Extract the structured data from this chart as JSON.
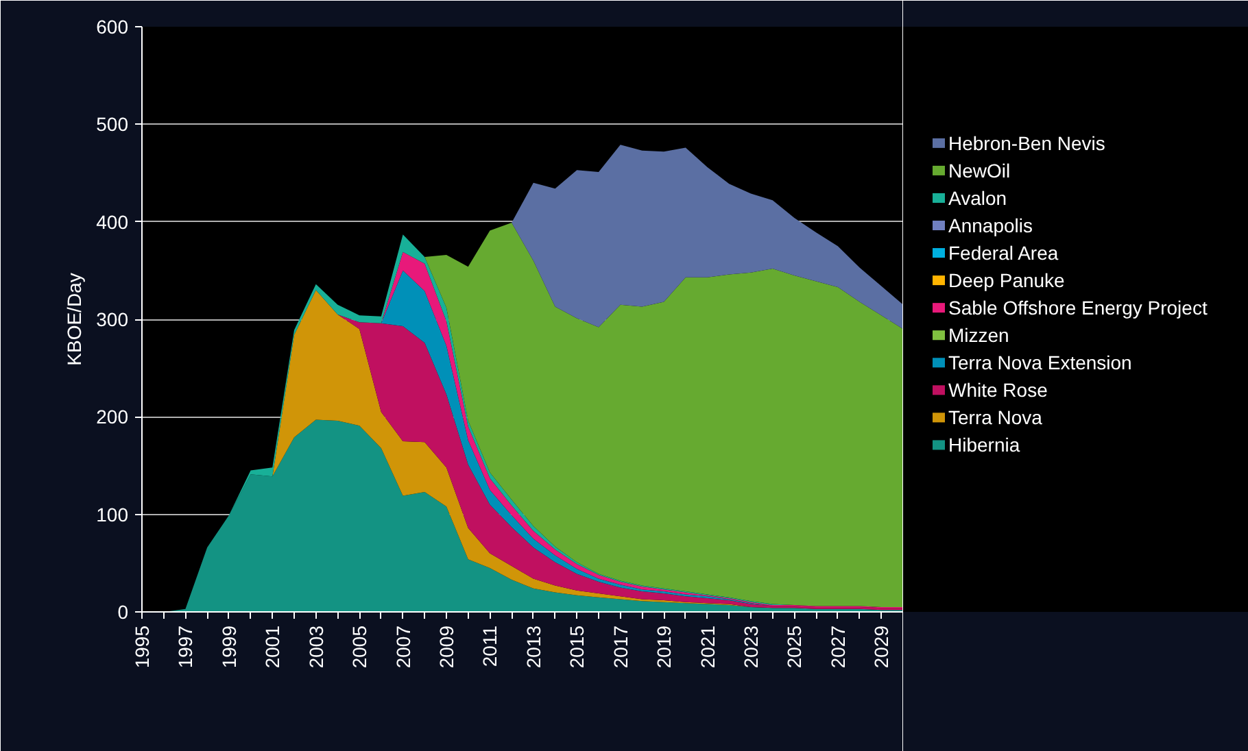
{
  "chart_data": {
    "type": "area",
    "stacked": true,
    "ylabel": "KBOE/Day",
    "x": [
      1995,
      1996,
      1997,
      1998,
      1999,
      2000,
      2001,
      2002,
      2003,
      2004,
      2005,
      2006,
      2007,
      2008,
      2009,
      2010,
      2011,
      2012,
      2013,
      2014,
      2015,
      2016,
      2017,
      2018,
      2019,
      2020,
      2021,
      2022,
      2023,
      2024,
      2025,
      2026,
      2027,
      2028,
      2029,
      2030
    ],
    "xlim": [
      1995,
      2030
    ],
    "xticks": [
      1995,
      {
        "value": 1996,
        "label": null
      },
      1997,
      {
        "value": 1998,
        "label": null
      },
      1999,
      {
        "value": 2000,
        "label": null
      },
      2001,
      {
        "value": 2002,
        "label": null
      },
      2003,
      {
        "value": 2004,
        "label": null
      },
      2005,
      {
        "value": 2006,
        "label": null
      },
      2007,
      {
        "value": 2008,
        "label": null
      },
      2009,
      {
        "value": 2010,
        "label": null
      },
      2011,
      {
        "value": 2012,
        "label": null
      },
      2013,
      {
        "value": 2014,
        "label": null
      },
      2015,
      {
        "value": 2016,
        "label": null
      },
      2017,
      {
        "value": 2018,
        "label": null
      },
      2019,
      {
        "value": 2020,
        "label": null
      },
      2021,
      {
        "value": 2022,
        "label": null
      },
      2023,
      {
        "value": 2024,
        "label": null
      },
      2025,
      {
        "value": 2026,
        "label": null
      },
      2027,
      {
        "value": 2028,
        "label": null
      },
      2029,
      {
        "value": 2030,
        "label": null
      }
    ],
    "ylim": [
      0,
      600
    ],
    "yticks": [
      0,
      100,
      200,
      300,
      400,
      500,
      600
    ],
    "grid": "y",
    "legend": "right",
    "series": [
      {
        "name": "Hibernia",
        "color": "#139383",
        "values": [
          0,
          0,
          3,
          66,
          99,
          141,
          139,
          179,
          197,
          196,
          191,
          168,
          119,
          123,
          108,
          54,
          45,
          33,
          24,
          20,
          17,
          15,
          13,
          11,
          10,
          9,
          8,
          7,
          5,
          4,
          4,
          3,
          3,
          3,
          2,
          2
        ]
      },
      {
        "name": "Terra Nova",
        "color": "#d09508",
        "values": [
          null,
          null,
          null,
          null,
          null,
          null,
          0,
          105,
          133,
          109,
          99,
          37,
          56,
          51,
          40,
          32,
          15,
          14,
          10,
          7,
          5,
          4,
          3,
          2,
          2,
          1,
          1,
          1,
          0,
          null,
          null,
          null,
          null,
          null,
          null,
          null
        ]
      },
      {
        "name": "White Rose",
        "color": "#c01060",
        "values": [
          null,
          null,
          null,
          null,
          null,
          null,
          null,
          null,
          null,
          0,
          7,
          91,
          118,
          102,
          75,
          65,
          50,
          40,
          32,
          24,
          17,
          12,
          9,
          8,
          7,
          6,
          5,
          4,
          3,
          2,
          2,
          2,
          2,
          2,
          2,
          2
        ]
      },
      {
        "name": "Terra Nova Extension",
        "color": "#0090b8",
        "values": [
          null,
          null,
          null,
          null,
          null,
          null,
          null,
          null,
          null,
          null,
          null,
          0,
          57,
          53,
          50,
          25,
          15,
          12,
          9,
          7,
          5,
          3,
          3,
          2,
          2,
          2,
          2,
          1,
          1,
          0,
          null,
          null,
          null,
          null,
          null,
          null
        ]
      },
      {
        "name": "Mizzen",
        "color": "#80c040",
        "values": [
          null,
          null,
          null,
          null,
          null,
          null,
          null,
          null,
          null,
          null,
          null,
          null,
          null,
          null,
          null,
          null,
          null,
          null,
          null,
          null,
          null,
          null,
          null,
          null,
          null,
          null,
          null,
          null,
          null,
          null,
          null,
          null,
          null,
          null,
          null,
          null
        ]
      },
      {
        "name": "Sable Offshore Energy Project",
        "color": "#e8197a",
        "values": [
          null,
          null,
          null,
          null,
          null,
          null,
          null,
          null,
          null,
          null,
          null,
          0,
          19,
          28,
          25,
          14,
          12,
          10,
          8,
          6,
          5,
          4,
          3,
          3,
          2,
          2,
          1,
          1,
          1,
          1,
          1,
          1,
          1,
          1,
          1,
          1
        ]
      },
      {
        "name": "Deep Panuke",
        "color": "#ffb400",
        "values": [
          null,
          null,
          null,
          null,
          null,
          null,
          null,
          null,
          null,
          null,
          null,
          null,
          null,
          null,
          null,
          null,
          null,
          null,
          null,
          null,
          null,
          null,
          null,
          null,
          null,
          null,
          null,
          null,
          null,
          null,
          null,
          null,
          null,
          null,
          null,
          null
        ]
      },
      {
        "name": "Federal Area",
        "color": "#00b0e0",
        "values": [
          null,
          null,
          null,
          null,
          null,
          null,
          null,
          null,
          null,
          null,
          null,
          null,
          null,
          null,
          null,
          null,
          null,
          null,
          null,
          null,
          null,
          null,
          null,
          null,
          null,
          null,
          null,
          null,
          null,
          null,
          null,
          null,
          null,
          null,
          null,
          null
        ]
      },
      {
        "name": "Annapolis",
        "color": "#7080c0",
        "values": [
          null,
          null,
          null,
          null,
          null,
          null,
          null,
          null,
          null,
          null,
          null,
          null,
          null,
          null,
          null,
          null,
          null,
          null,
          null,
          null,
          null,
          null,
          null,
          null,
          null,
          null,
          null,
          null,
          null,
          null,
          null,
          null,
          null,
          null,
          null,
          null
        ]
      },
      {
        "name": "Avalon",
        "color": "#18b098",
        "values": [
          null,
          null,
          null,
          null,
          0,
          4,
          9,
          5,
          6,
          10,
          7,
          7,
          18,
          7,
          14,
          6,
          6,
          6,
          5,
          3,
          2,
          1,
          1,
          1,
          1,
          1,
          1,
          1,
          1,
          1,
          0,
          null,
          null,
          null,
          null,
          null
        ]
      },
      {
        "name": "NewOil",
        "color": "#66aa30",
        "values": [
          null,
          null,
          null,
          null,
          null,
          null,
          null,
          null,
          null,
          null,
          null,
          null,
          null,
          0,
          54,
          158,
          248,
          284,
          272,
          246,
          250,
          253,
          283,
          286,
          294,
          322,
          325,
          331,
          337,
          344,
          338,
          333,
          327,
          312,
          299,
          285
        ]
      },
      {
        "name": "Hebron-Ben Nevis",
        "color": "#5b6fa3",
        "values": [
          null,
          null,
          null,
          null,
          null,
          null,
          null,
          null,
          null,
          null,
          null,
          null,
          null,
          null,
          null,
          null,
          null,
          0,
          80,
          121,
          152,
          159,
          164,
          160,
          154,
          133,
          113,
          93,
          81,
          70,
          59,
          50,
          42,
          35,
          30,
          25
        ]
      }
    ]
  }
}
